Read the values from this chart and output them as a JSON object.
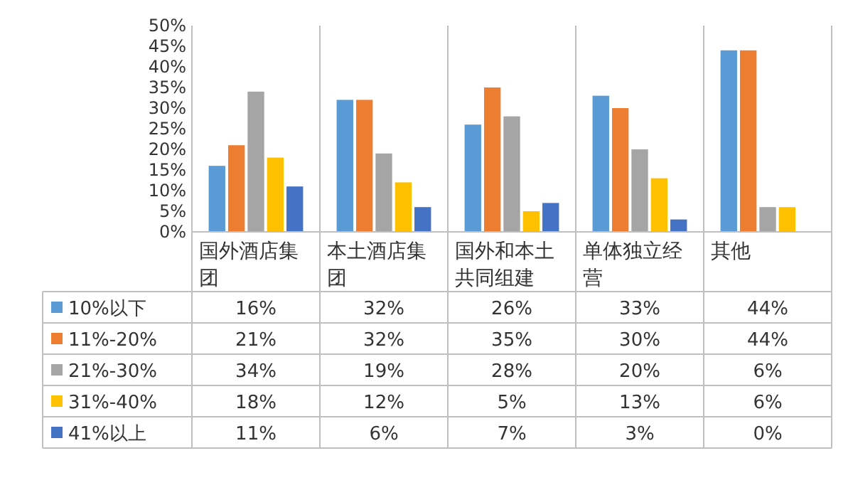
{
  "chart_data": {
    "type": "bar",
    "categories": [
      "国外酒店集团",
      "本土酒店集团",
      "国外和本土共同组建",
      "单体独立经营",
      "其他"
    ],
    "series": [
      {
        "name": "10%以下",
        "color": "#5b9bd5",
        "values": [
          16,
          32,
          26,
          33,
          44
        ],
        "value_labels": [
          "16%",
          "32%",
          "26%",
          "33%",
          "44%"
        ]
      },
      {
        "name": "11%-20%",
        "color": "#ed7d31",
        "values": [
          21,
          32,
          35,
          30,
          44
        ],
        "value_labels": [
          "21%",
          "32%",
          "35%",
          "30%",
          "44%"
        ]
      },
      {
        "name": "21%-30%",
        "color": "#a5a5a5",
        "values": [
          34,
          19,
          28,
          20,
          6
        ],
        "value_labels": [
          "34%",
          "19%",
          "28%",
          "20%",
          "6%"
        ]
      },
      {
        "name": "31%-40%",
        "color": "#ffc000",
        "values": [
          18,
          12,
          5,
          13,
          6
        ],
        "value_labels": [
          "18%",
          "12%",
          "5%",
          "13%",
          "6%"
        ]
      },
      {
        "name": "41%以上",
        "color": "#4472c4",
        "values": [
          11,
          6,
          7,
          3,
          0
        ],
        "value_labels": [
          "11%",
          "6%",
          "7%",
          "3%",
          "0%"
        ]
      }
    ],
    "ylim": [
      0,
      50
    ],
    "yticks": [
      {
        "value": 0,
        "label": "0%"
      },
      {
        "value": 5,
        "label": "5%"
      },
      {
        "value": 10,
        "label": "10%"
      },
      {
        "value": 15,
        "label": "15%"
      },
      {
        "value": 20,
        "label": "20%"
      },
      {
        "value": 25,
        "label": "25%"
      },
      {
        "value": 30,
        "label": "30%"
      },
      {
        "value": 35,
        "label": "35%"
      },
      {
        "value": 40,
        "label": "40%"
      },
      {
        "value": 45,
        "label": "45%"
      },
      {
        "value": 50,
        "label": "50%"
      }
    ],
    "legend": "bottom",
    "grid": false
  }
}
